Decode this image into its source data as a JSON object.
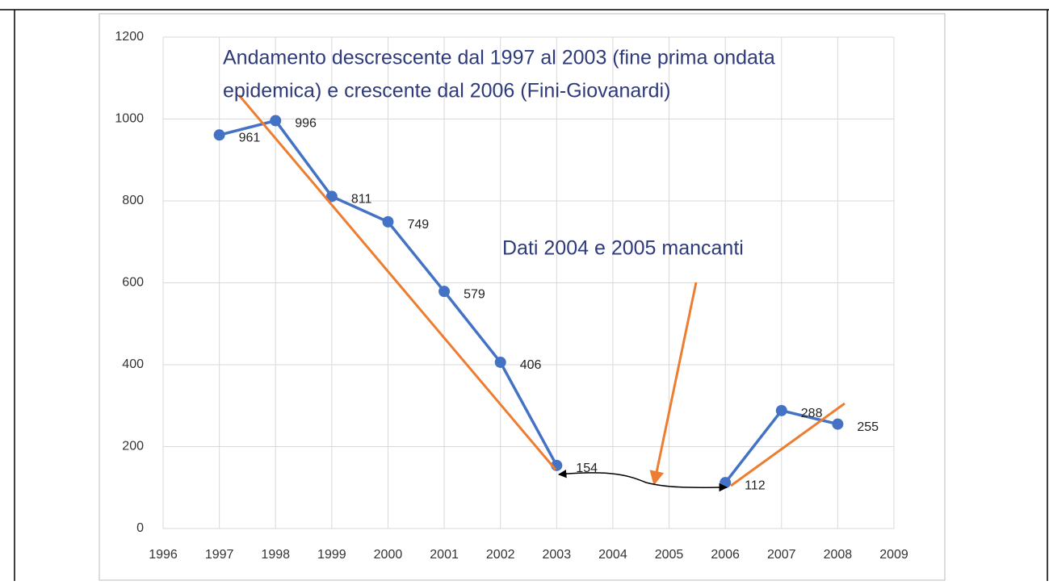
{
  "chart_data": {
    "type": "line",
    "annotations": [
      [
        "Andamento descrescente dal 1997 al 2003 (fine prima ondata",
        "epidemica) e crescente dal 2006 (Fini-Giovanardi)"
      ],
      [
        "Dati 2004 e 2005 mancanti"
      ]
    ],
    "x": [
      1997,
      1998,
      1999,
      2000,
      2001,
      2002,
      2003,
      2004,
      2005,
      2006,
      2007,
      2008
    ],
    "series": [
      {
        "color": "#4472c4",
        "values": [
          961,
          996,
          811,
          749,
          579,
          406,
          154,
          null,
          null,
          112,
          288,
          255
        ]
      }
    ],
    "xlim": [
      1996,
      2009
    ],
    "xticks": [
      1996,
      1997,
      1998,
      1999,
      2000,
      2001,
      2002,
      2003,
      2004,
      2005,
      2006,
      2007,
      2008,
      2009
    ],
    "ylim": [
      0,
      1200
    ],
    "yticks": [
      0,
      200,
      400,
      600,
      800,
      1000,
      1200
    ],
    "grid": true,
    "data_labels": true
  }
}
